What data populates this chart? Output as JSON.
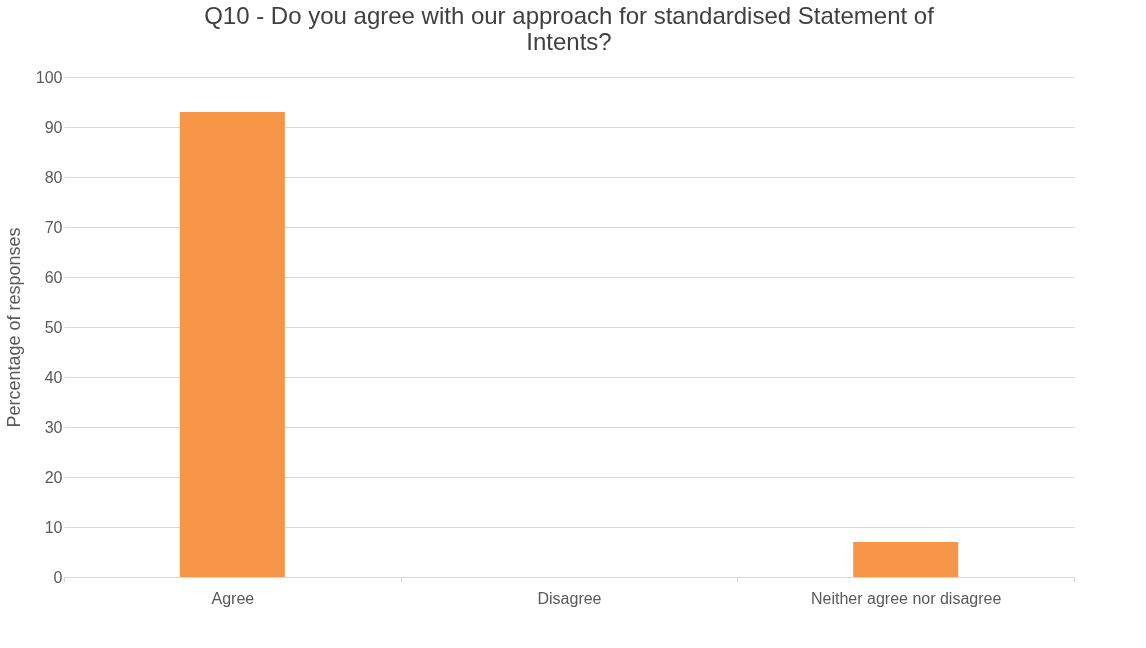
{
  "chart_data": {
    "type": "bar",
    "title": "Q10 - Do you agree with our approach for standardised Statement of Intents?",
    "ylabel": "Percentage of responses",
    "categories": [
      "Agree",
      "Disagree",
      "Neither agree nor disagree"
    ],
    "values": [
      93,
      0,
      7
    ],
    "color": "#f79646",
    "ylim": [
      0,
      100
    ],
    "yticks": [
      0,
      10,
      20,
      30,
      40,
      50,
      60,
      70,
      80,
      90,
      100
    ],
    "grid": "y"
  }
}
